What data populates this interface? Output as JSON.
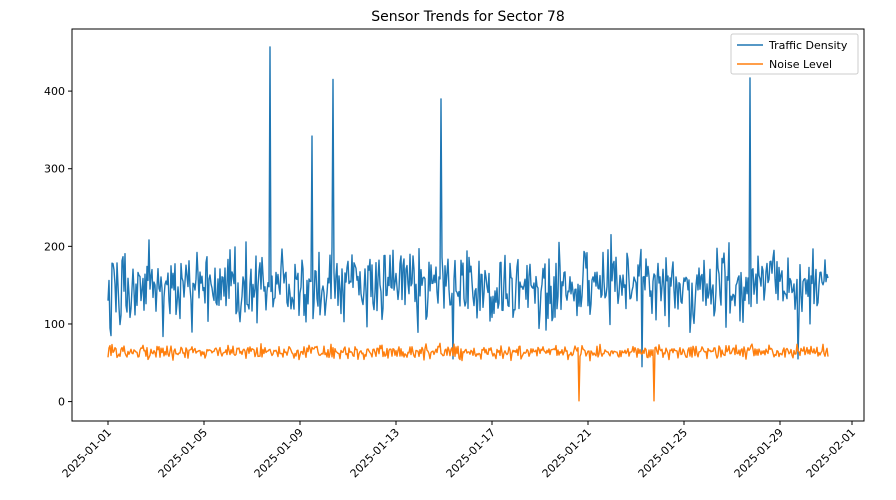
{
  "chart_data": {
    "type": "line",
    "title": "Sensor Trends for Sector 78",
    "xlabel": "",
    "ylabel": "",
    "x_range": [
      "2025-01-01",
      "2025-01-31"
    ],
    "xlim": [
      "2024-12-30T12:00",
      "2025-02-01T12:00"
    ],
    "ylim": [
      -25,
      480
    ],
    "yticks": [
      0,
      100,
      200,
      300,
      400
    ],
    "xticks": [
      "2025-01-01",
      "2025-01-05",
      "2025-01-09",
      "2025-01-13",
      "2025-01-17",
      "2025-01-21",
      "2025-01-25",
      "2025-01-29",
      "2025-02-01"
    ],
    "grid": false,
    "legend": "top-right",
    "series": [
      {
        "name": "Traffic Density",
        "color": "#1f77b4",
        "baseline_range": [
          75,
          225
        ],
        "typical": 150,
        "spikes": [
          {
            "x": "2025-01-07T18:00",
            "y": 457
          },
          {
            "x": "2025-01-09T12:00",
            "y": 342
          },
          {
            "x": "2025-01-10T09:00",
            "y": 415
          },
          {
            "x": "2025-01-14T21:00",
            "y": 390
          },
          {
            "x": "2025-01-27T18:00",
            "y": 417
          }
        ],
        "dips": [
          {
            "x": "2025-01-01T03:00",
            "y": 85
          },
          {
            "x": "2025-01-15T09:00",
            "y": 55
          },
          {
            "x": "2025-01-23T06:00",
            "y": 45
          },
          {
            "x": "2025-01-29T18:00",
            "y": 55
          }
        ]
      },
      {
        "name": "Noise Level",
        "color": "#ff7f0e",
        "baseline_range": [
          50,
          78
        ],
        "typical": 65,
        "dips": [
          {
            "x": "2025-01-20T15:00",
            "y": 1
          },
          {
            "x": "2025-01-23T18:00",
            "y": 1
          }
        ]
      }
    ]
  }
}
